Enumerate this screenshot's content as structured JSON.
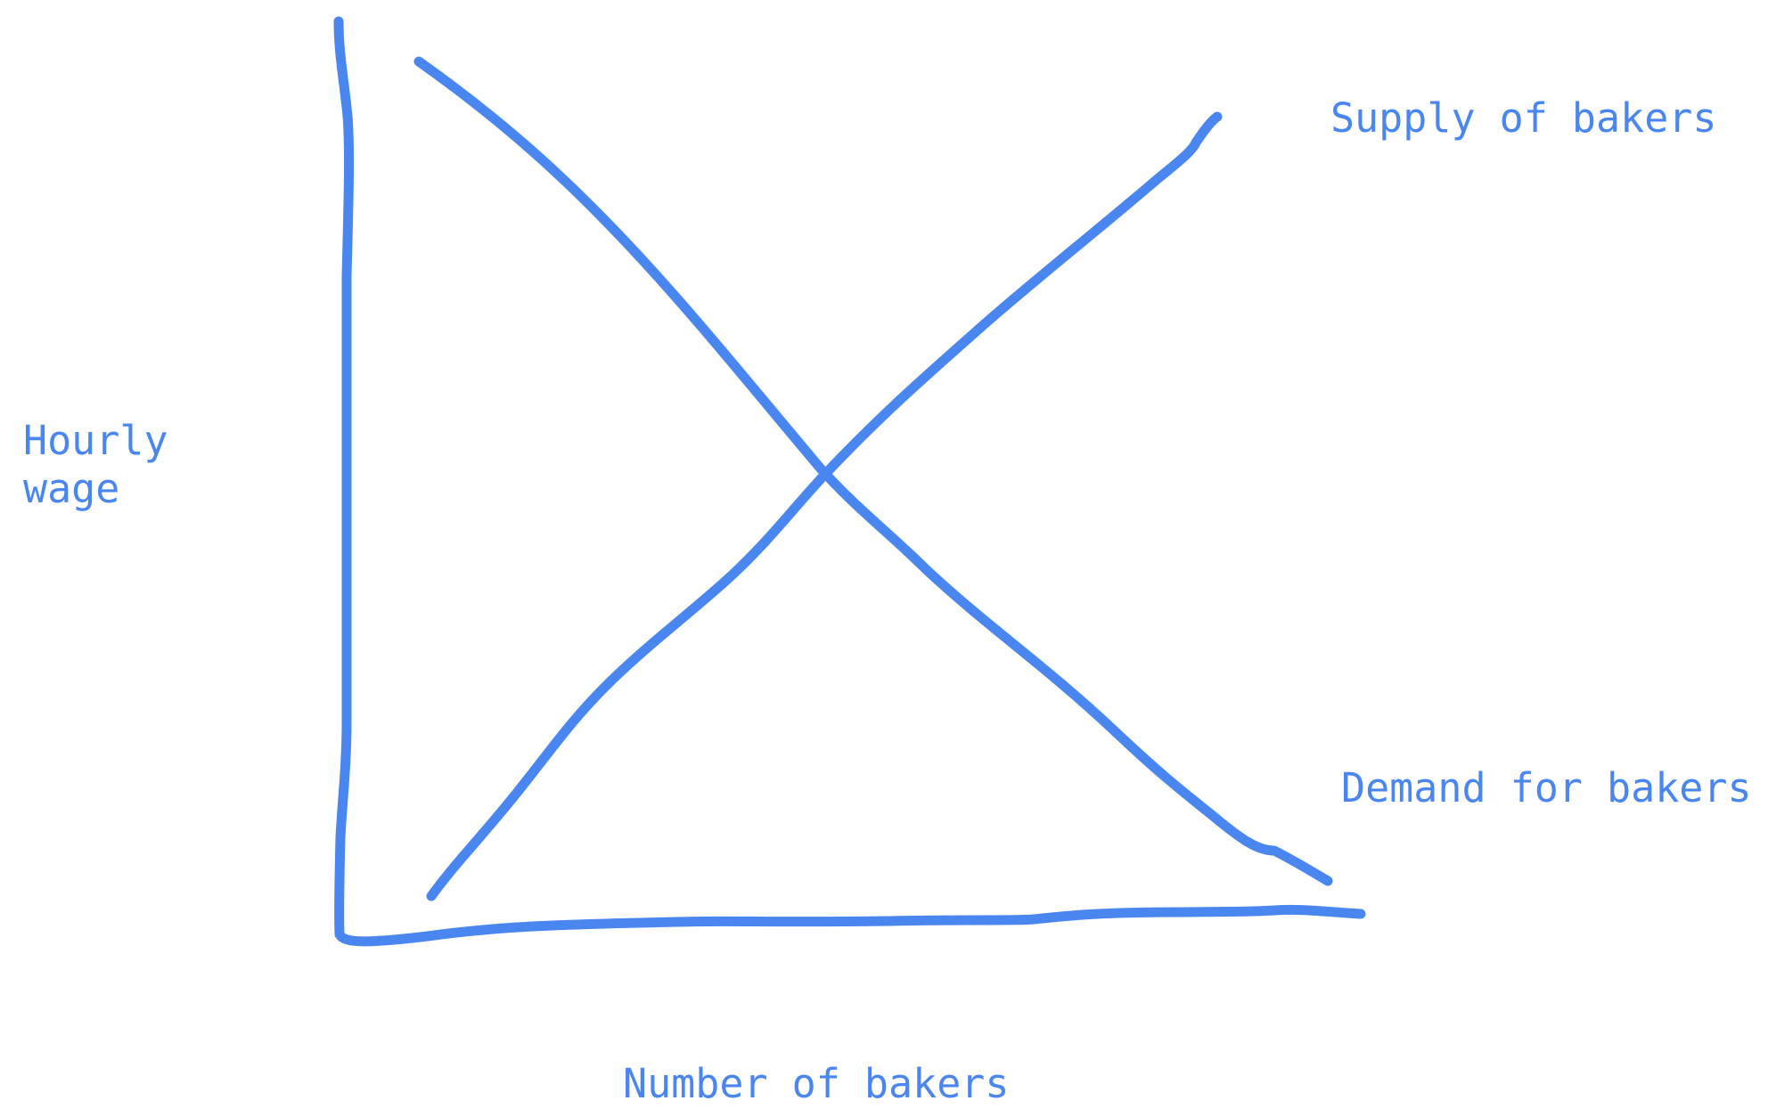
{
  "diagram": {
    "y_axis_label": [
      "Hourly",
      "wage"
    ],
    "x_axis_label": "Number of bakers",
    "supply_label": "Supply of bakers",
    "demand_label": "Demand for bakers",
    "stroke_color": "#4a86f0"
  }
}
